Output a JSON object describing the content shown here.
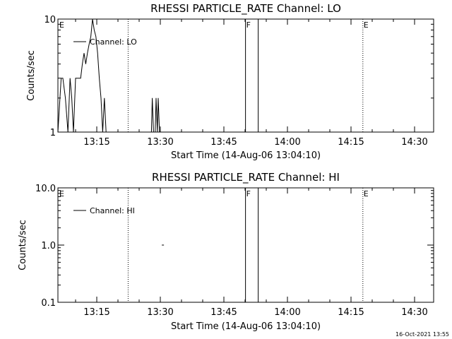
{
  "timestamp": "16-Oct-2021 13:55",
  "colors": {
    "background": "#ffffff",
    "foreground": "#000000"
  },
  "chart_data": [
    {
      "type": "line",
      "title": "RHESSI PARTICLE_RATE Channel: LO",
      "xlabel": "Start Time (14-Aug-06 13:04:10)",
      "ylabel": "Counts/sec",
      "yscale": "log",
      "ylim": [
        1,
        10
      ],
      "yticks": [
        {
          "value": 1,
          "label": "1"
        },
        {
          "value": 10,
          "label": "10"
        }
      ],
      "xlim_minutes": [
        5.83,
        94.5
      ],
      "xticks": [
        {
          "value": 15,
          "label": "13:15"
        },
        {
          "value": 30,
          "label": "13:30"
        },
        {
          "value": 45,
          "label": "13:45"
        },
        {
          "value": 60,
          "label": "14:00"
        },
        {
          "value": 75,
          "label": "14:15"
        },
        {
          "value": 90,
          "label": "14:30"
        }
      ],
      "legend": {
        "label": "Channel: LO",
        "position": "top-left"
      },
      "markers": [
        {
          "label": "E",
          "x": 6,
          "style": "none"
        },
        {
          "label": "",
          "x": 22.4,
          "style": "dotted"
        },
        {
          "label": "F",
          "x": 50.1,
          "style": "solid"
        },
        {
          "label": "",
          "x": 53.1,
          "style": "solid"
        },
        {
          "label": "E",
          "x": 77.8,
          "style": "dotted"
        },
        {
          "label": "",
          "x": 94.5,
          "style": "dotted"
        }
      ],
      "series": [
        {
          "name": "Channel: LO",
          "x": [
            5.83,
            6.6,
            7.0,
            7.6,
            8.2,
            8.7,
            9.1,
            9.5,
            10.0,
            10.4,
            10.8,
            11.2,
            11.6,
            12.0,
            12.4,
            12.8,
            13.2,
            13.6,
            14.0,
            14.4,
            14.8,
            15.2,
            15.6,
            16.0,
            16.4,
            16.8,
            17.2,
            17.6,
            18.0,
            27.9,
            28.1,
            28.4,
            28.6,
            28.8,
            29.0,
            29.3,
            29.5,
            29.8
          ],
          "y": [
            1.0,
            3.0,
            3.0,
            2.0,
            1.0,
            3.0,
            2.0,
            1.0,
            3.0,
            3.0,
            3.0,
            3.0,
            4.0,
            5.0,
            4.0,
            5.0,
            6.0,
            7.0,
            10.0,
            8.0,
            7.0,
            5.0,
            3.0,
            2.0,
            1.0,
            2.0,
            1.0,
            1.0,
            1.0,
            1.0,
            2.0,
            1.0,
            1.0,
            1.0,
            2.0,
            1.0,
            2.0,
            1.0
          ]
        }
      ]
    },
    {
      "type": "line",
      "title": "RHESSI PARTICLE_RATE Channel: HI",
      "xlabel": "Start Time (14-Aug-06 13:04:10)",
      "ylabel": "Counts/sec",
      "yscale": "log",
      "ylim": [
        0.1,
        10
      ],
      "yticks": [
        {
          "value": 0.1,
          "label": "0.1"
        },
        {
          "value": 1,
          "label": "1.0"
        },
        {
          "value": 10,
          "label": "10.0"
        }
      ],
      "xlim_minutes": [
        5.83,
        94.5
      ],
      "xticks": [
        {
          "value": 15,
          "label": "13:15"
        },
        {
          "value": 30,
          "label": "13:30"
        },
        {
          "value": 45,
          "label": "13:45"
        },
        {
          "value": 60,
          "label": "14:00"
        },
        {
          "value": 75,
          "label": "14:15"
        },
        {
          "value": 90,
          "label": "14:30"
        }
      ],
      "legend": {
        "label": "Channel: HI",
        "position": "top-left"
      },
      "markers": [
        {
          "label": "E",
          "x": 6,
          "style": "none"
        },
        {
          "label": "",
          "x": 22.4,
          "style": "dotted"
        },
        {
          "label": "F",
          "x": 50.1,
          "style": "solid"
        },
        {
          "label": "",
          "x": 53.1,
          "style": "solid"
        },
        {
          "label": "E",
          "x": 77.8,
          "style": "dotted"
        },
        {
          "label": "",
          "x": 94.5,
          "style": "dotted"
        }
      ],
      "series": [
        {
          "name": "Channel: HI",
          "points": [
            {
              "x": 30.6,
              "y": 1.0
            }
          ]
        }
      ]
    }
  ]
}
